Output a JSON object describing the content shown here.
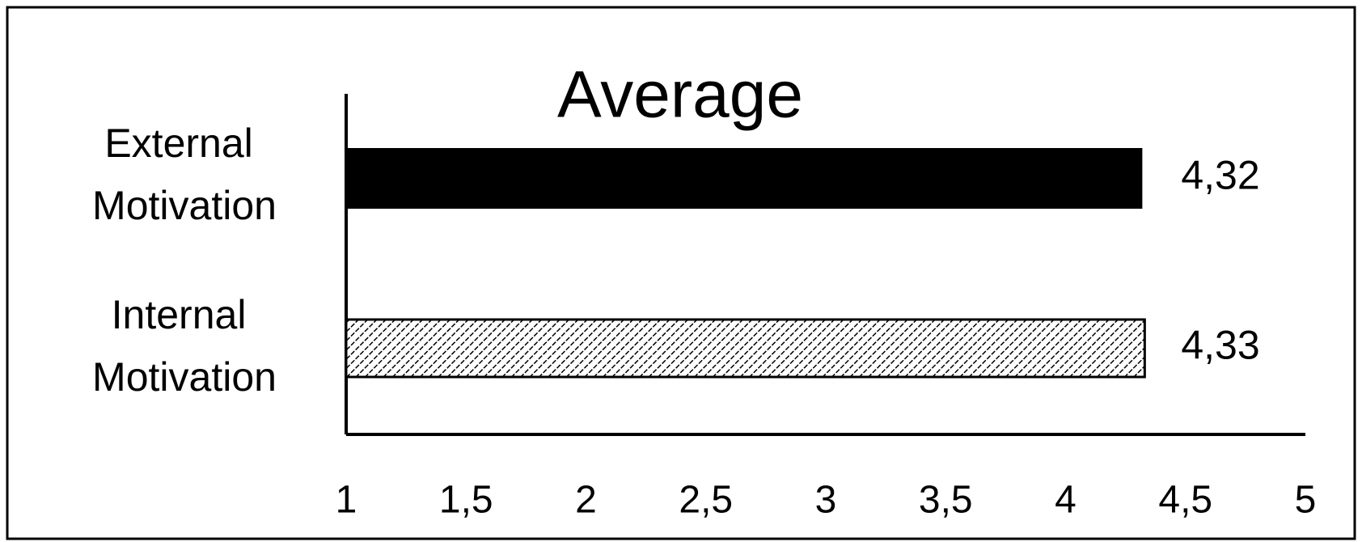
{
  "chart_data": {
    "type": "bar",
    "orientation": "horizontal",
    "title": "Average",
    "categories": [
      "External Motivation",
      "Internal Motivation"
    ],
    "values": [
      4.32,
      4.33
    ],
    "value_labels": [
      "4,32",
      "4,33"
    ],
    "fills": [
      "solid",
      "hatch"
    ],
    "color": "#000000",
    "xlim": [
      1,
      5
    ],
    "xticks": [
      1,
      {
        "value": 1.5,
        "label": "1,5"
      },
      2,
      {
        "value": 2.5,
        "label": "2,5"
      },
      3,
      {
        "value": 3.5,
        "label": "3,5"
      },
      4,
      {
        "value": 4.5,
        "label": "4,5"
      },
      5
    ],
    "grid": false
  }
}
